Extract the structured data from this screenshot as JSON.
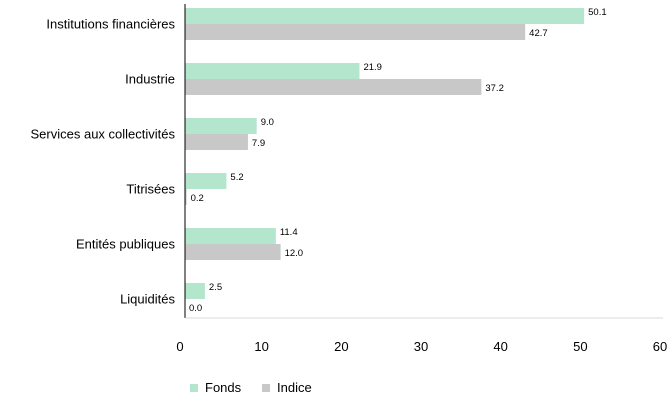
{
  "chart_data": {
    "type": "bar",
    "orientation": "horizontal",
    "categories": [
      "Institutions financières",
      "Industrie",
      "Services aux collectivités",
      "Titrisées",
      "Entités publiques",
      "Liquidités"
    ],
    "series": [
      {
        "name": "Fonds",
        "color": "#b3e6cc",
        "values": [
          50.1,
          21.9,
          9.0,
          5.2,
          11.4,
          2.5
        ],
        "labels": [
          "50.1",
          "21.9",
          "9.0",
          "5.2",
          "11.4",
          "2.5"
        ]
      },
      {
        "name": "Indice",
        "color": "#c8c8c8",
        "values": [
          42.7,
          37.2,
          7.9,
          0.2,
          12.0,
          0.0
        ],
        "labels": [
          "42.7",
          "37.2",
          "7.9",
          "0.2",
          "12.0",
          "0.0"
        ]
      }
    ],
    "xlim": [
      0,
      60
    ],
    "xticks": [
      0,
      10,
      20,
      30,
      40,
      50,
      60
    ],
    "title": "",
    "xlabel": "",
    "ylabel": "",
    "grid": false,
    "legend_position": "bottom-left"
  }
}
